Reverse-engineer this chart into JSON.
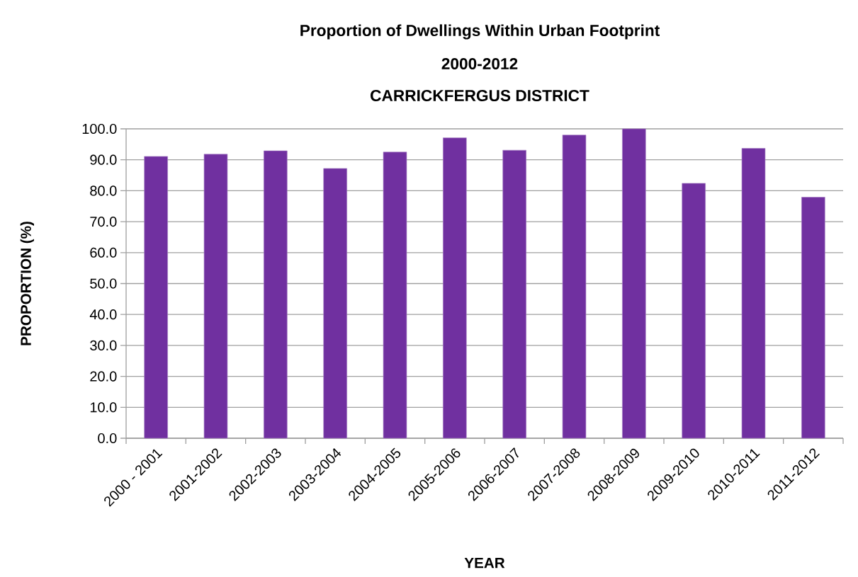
{
  "chart_data": {
    "type": "bar",
    "title": "Proportion of Dwellings Within Urban Footprint",
    "subtitle": "2000-2012",
    "annotations": [
      "CARRICKFERGUS DISTRICT"
    ],
    "xlabel": "YEAR",
    "ylabel": "PROPORTION (%)",
    "categories": [
      "2000 - 2001",
      "2001-2002",
      "2002-2003",
      "2003-2004",
      "2004-2005",
      "2005-2006",
      "2006-2007",
      "2007-2008",
      "2008-2009",
      "2009-2010",
      "2010-2011",
      "2011-2012"
    ],
    "values": [
      91.1,
      91.8,
      92.9,
      87.2,
      92.5,
      97.1,
      93.1,
      98.0,
      100.0,
      82.4,
      93.7,
      77.9
    ],
    "color": "#7030a0",
    "ylim": [
      0,
      100
    ],
    "yticks": [
      {
        "value": 0,
        "label": "0.0"
      },
      {
        "value": 10,
        "label": "10.0"
      },
      {
        "value": 20,
        "label": "20.0"
      },
      {
        "value": 30,
        "label": "30.0"
      },
      {
        "value": 40,
        "label": "40.0"
      },
      {
        "value": 50,
        "label": "50.0"
      },
      {
        "value": 60,
        "label": "60.0"
      },
      {
        "value": 70,
        "label": "70.0"
      },
      {
        "value": 80,
        "label": "80.0"
      },
      {
        "value": 90,
        "label": "90.0"
      },
      {
        "value": 100,
        "label": "100.0"
      }
    ],
    "grid": "y"
  }
}
